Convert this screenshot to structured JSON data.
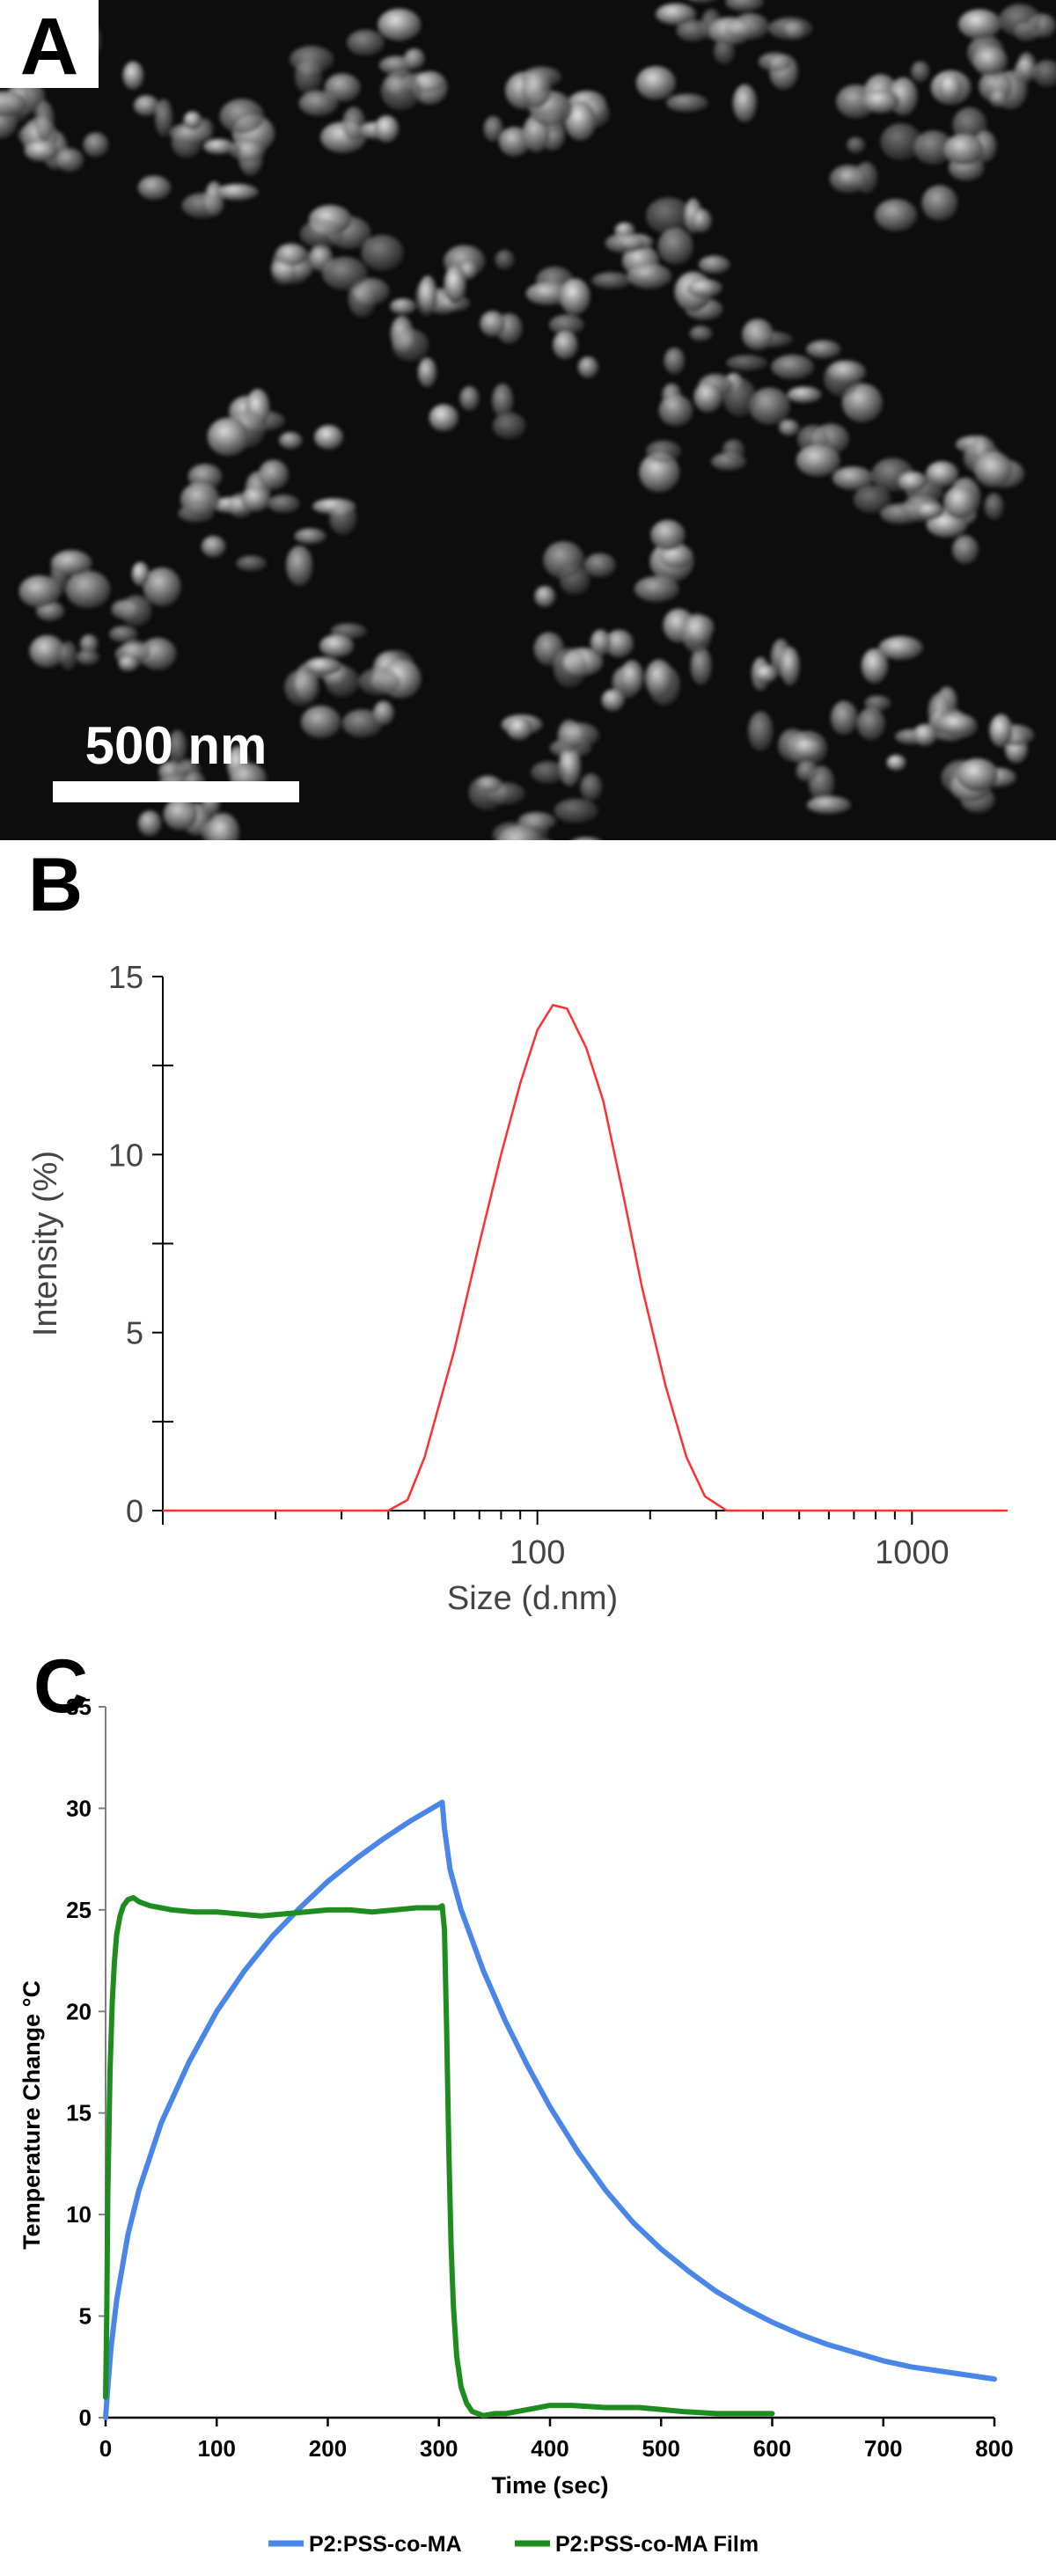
{
  "panels": {
    "a": {
      "label": "A",
      "scale_bar_text": "500 nm"
    },
    "b": {
      "label": "B"
    },
    "c": {
      "label": "C"
    }
  },
  "chart_data": [
    {
      "panel": "B",
      "type": "line",
      "xlabel": "Size (d.nm)",
      "ylabel": "Intensity (%)",
      "xscale": "log",
      "xlim": [
        10,
        1800
      ],
      "ylim": [
        0,
        15
      ],
      "x_tick_labels": [
        "100",
        "1000"
      ],
      "y_tick_labels": [
        "0",
        "5",
        "10",
        "15"
      ],
      "grid": false,
      "series": [
        {
          "color": "#ff3030",
          "x": [
            10,
            40,
            45,
            50,
            60,
            70,
            80,
            90,
            100,
            110,
            120,
            135,
            150,
            170,
            190,
            220,
            250,
            280,
            320,
            400,
            1000,
            1800
          ],
          "y": [
            0,
            0,
            0.3,
            1.5,
            4.5,
            7.5,
            10.0,
            12.0,
            13.5,
            14.2,
            14.1,
            13.0,
            11.5,
            8.8,
            6.3,
            3.5,
            1.5,
            0.4,
            0,
            0,
            0,
            0
          ]
        }
      ]
    },
    {
      "panel": "C",
      "type": "line",
      "xlabel": "Time (sec)",
      "ylabel": "Temperature Change °C",
      "xlim": [
        0,
        800
      ],
      "ylim": [
        0,
        35
      ],
      "x_ticks": [
        0,
        100,
        200,
        300,
        400,
        500,
        600,
        700,
        800
      ],
      "y_ticks": [
        0,
        5,
        10,
        15,
        20,
        25,
        30,
        35
      ],
      "grid": false,
      "legend": "bottom",
      "series": [
        {
          "name": "P2:PSS-co-MA",
          "color": "#4a86e8",
          "x": [
            0,
            2,
            5,
            10,
            20,
            30,
            50,
            75,
            100,
            125,
            150,
            175,
            200,
            225,
            250,
            275,
            300,
            303,
            305,
            310,
            320,
            340,
            360,
            380,
            400,
            425,
            450,
            475,
            500,
            525,
            550,
            575,
            600,
            625,
            650,
            675,
            700,
            725,
            750,
            775,
            800
          ],
          "y": [
            0,
            1.5,
            3.5,
            5.8,
            9.0,
            11.2,
            14.5,
            17.5,
            20.0,
            22.0,
            23.7,
            25.1,
            26.4,
            27.5,
            28.5,
            29.4,
            30.2,
            30.3,
            29.0,
            27.0,
            25.0,
            22.0,
            19.5,
            17.3,
            15.3,
            13.1,
            11.2,
            9.6,
            8.3,
            7.2,
            6.2,
            5.4,
            4.7,
            4.1,
            3.6,
            3.2,
            2.8,
            2.5,
            2.3,
            2.1,
            1.9
          ]
        },
        {
          "name": "P2:PSS-co-MA Film",
          "color": "#1f8c1f",
          "x": [
            0,
            1,
            2,
            4,
            6,
            8,
            10,
            13,
            16,
            20,
            25,
            30,
            40,
            50,
            60,
            80,
            100,
            120,
            140,
            160,
            180,
            200,
            220,
            240,
            260,
            280,
            300,
            303,
            305,
            307,
            309,
            311,
            313,
            316,
            320,
            325,
            330,
            340,
            350,
            360,
            380,
            400,
            420,
            450,
            480,
            500,
            520,
            550,
            580,
            600
          ],
          "y": [
            1.0,
            5.0,
            11.0,
            17.0,
            20.5,
            22.5,
            23.8,
            24.7,
            25.2,
            25.5,
            25.6,
            25.4,
            25.2,
            25.1,
            25.0,
            24.9,
            24.9,
            24.8,
            24.7,
            24.8,
            24.9,
            25.0,
            25.0,
            24.9,
            25.0,
            25.1,
            25.1,
            25.2,
            24.0,
            19.0,
            13.0,
            8.5,
            5.5,
            3.0,
            1.5,
            0.7,
            0.3,
            0.1,
            0.2,
            0.2,
            0.4,
            0.6,
            0.6,
            0.5,
            0.5,
            0.4,
            0.3,
            0.2,
            0.2,
            0.2
          ]
        }
      ]
    }
  ]
}
